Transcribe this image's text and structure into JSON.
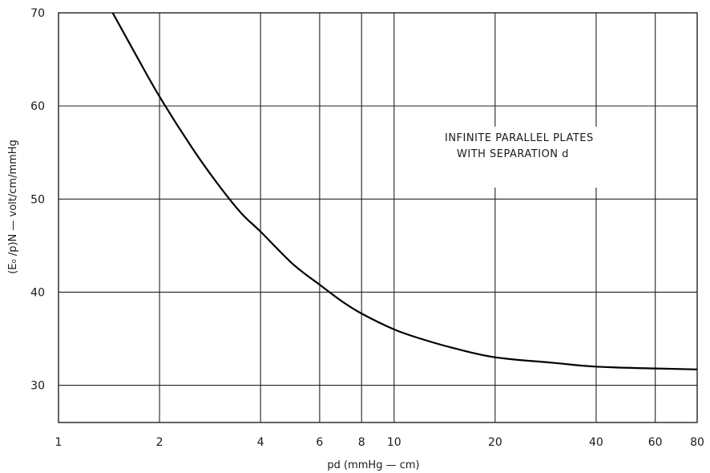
{
  "chart_data": {
    "type": "line",
    "title": "",
    "xlabel": "pd (mmHg — cm)",
    "ylabel": "(E₀ /p)N — volt/cm/mmHg",
    "x_scale": "log",
    "xlim": [
      1,
      80
    ],
    "ylim": [
      26,
      70
    ],
    "x_ticks": [
      1,
      2,
      4,
      6,
      8,
      10,
      20,
      40,
      60,
      80
    ],
    "x_tick_labels": [
      "1",
      "2",
      "4",
      "6",
      "8",
      "10",
      "20",
      "40",
      "60",
      "80"
    ],
    "y_ticks": [
      30,
      40,
      50,
      60,
      70
    ],
    "y_tick_labels": [
      "30",
      "40",
      "50",
      "60",
      "70"
    ],
    "grid": true,
    "annotation": [
      "INFINITE PARALLEL PLATES",
      "WITH SEPARATION d"
    ],
    "series": [
      {
        "x": [
          1.45,
          1.7,
          2,
          2.5,
          3,
          3.5,
          4,
          5,
          6,
          7,
          8,
          10,
          12,
          15,
          20,
          30,
          40,
          60,
          80
        ],
        "y": [
          70,
          65.5,
          61,
          55.5,
          51.5,
          48.5,
          46.5,
          43,
          40.8,
          39,
          37.7,
          36,
          35,
          34,
          33,
          32.4,
          32,
          31.8,
          31.7
        ]
      }
    ]
  }
}
